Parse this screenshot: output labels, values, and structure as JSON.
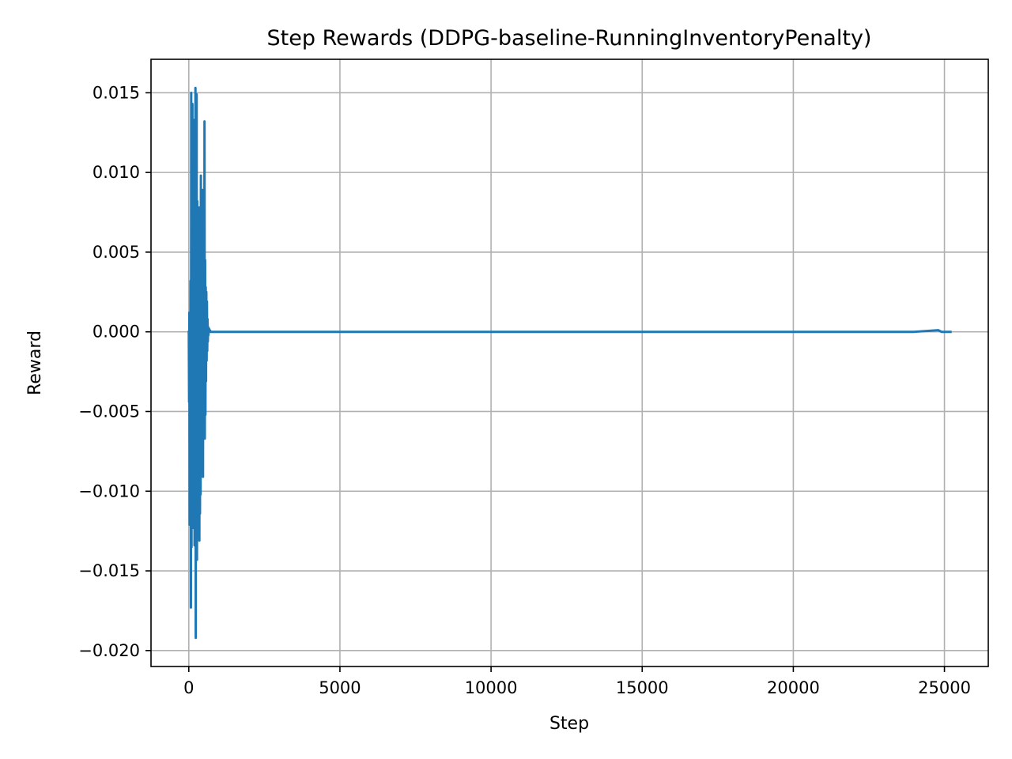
{
  "chart_data": {
    "type": "line",
    "title": "Step Rewards (DDPG-baseline-RunningInventoryPenalty)",
    "xlabel": "Step",
    "ylabel": "Reward",
    "xlim": [
      -1250,
      26450
    ],
    "ylim": [
      -0.021,
      0.0171
    ],
    "xticks": [
      0,
      5000,
      10000,
      15000,
      20000,
      25000
    ],
    "xtick_labels": [
      "0",
      "5000",
      "10000",
      "15000",
      "20000",
      "25000"
    ],
    "yticks": [
      0.015,
      0.01,
      0.005,
      0.0,
      -0.005,
      -0.01,
      -0.015,
      -0.02
    ],
    "ytick_labels": [
      "0.015",
      "0.010",
      "0.005",
      "0.000",
      "−0.005",
      "−0.010",
      "−0.015",
      "−0.020"
    ],
    "grid": true,
    "series": [
      {
        "color": "#1f77b4",
        "x": [
          0,
          10,
          20,
          30,
          40,
          50,
          60,
          70,
          80,
          90,
          100,
          110,
          120,
          130,
          140,
          150,
          160,
          170,
          180,
          190,
          200,
          210,
          220,
          230,
          240,
          250,
          260,
          270,
          280,
          290,
          300,
          310,
          320,
          330,
          340,
          350,
          360,
          370,
          380,
          390,
          400,
          410,
          420,
          430,
          440,
          450,
          460,
          470,
          480,
          490,
          500,
          510,
          520,
          530,
          540,
          550,
          560,
          570,
          580,
          590,
          600,
          610,
          620,
          630,
          640,
          650,
          660,
          670,
          680,
          690,
          700,
          720,
          750,
          800,
          1000,
          5000,
          10000,
          15000,
          20000,
          24000,
          24800,
          24900,
          25000,
          25200
        ],
        "y": [
          0.0,
          -0.0044,
          0.0012,
          -0.0121,
          0.0005,
          -0.0085,
          0.0032,
          -0.0173,
          0.015,
          -0.0135,
          0.0084,
          -0.0055,
          0.0143,
          -0.0092,
          0.0105,
          -0.0123,
          0.0133,
          -0.0075,
          0.0076,
          -0.0134,
          0.012,
          -0.0115,
          0.0153,
          -0.0192,
          0.0134,
          -0.0093,
          0.0149,
          -0.0143,
          0.0082,
          -0.0128,
          0.0061,
          -0.0125,
          0.0058,
          -0.0117,
          0.0078,
          -0.0131,
          0.0071,
          -0.0114,
          0.0052,
          -0.0102,
          0.0098,
          -0.0088,
          0.0089,
          -0.0066,
          0.0075,
          -0.0074,
          0.0089,
          -0.0091,
          0.0047,
          -0.0053,
          0.0069,
          -0.0043,
          0.0132,
          -0.0067,
          0.0045,
          -0.0052,
          0.0028,
          -0.0031,
          0.0025,
          -0.0018,
          0.0019,
          -0.0012,
          0.0008,
          -0.0006,
          0.0003,
          -0.0002,
          0.0001,
          0.0002,
          0.0001,
          0.0,
          0.0001,
          0.0,
          0.0,
          0.0,
          0.0,
          0.0,
          0.0,
          0.0,
          0.0,
          0.0,
          0.0001,
          0.0,
          0.0,
          0.0
        ]
      }
    ]
  }
}
